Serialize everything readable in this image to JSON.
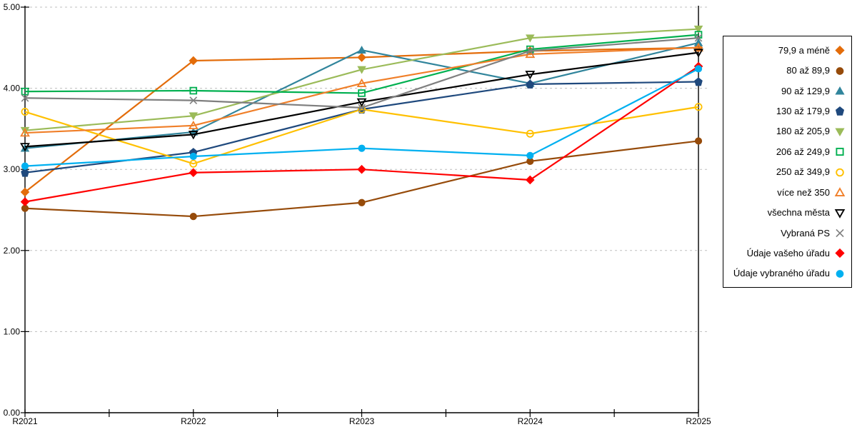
{
  "chart_data": {
    "type": "line",
    "title": "",
    "xlabel": "",
    "ylabel": "",
    "categories": [
      "R2021",
      "R2022",
      "R2023",
      "R2024",
      "R2025"
    ],
    "ylim": [
      0,
      5
    ],
    "ytick_step": 1,
    "ytick_labels": [
      "0.00",
      "1.00",
      "2.00",
      "3.00",
      "4.00",
      "5.00"
    ],
    "grid": "horizontal dashed gridlines at each 1.00",
    "legend_position": "right",
    "series": [
      {
        "name": "79,9 a méně",
        "color": "#E36C0A",
        "marker": "diamond",
        "marker_fill": "solid",
        "values": [
          2.72,
          4.34,
          4.38,
          4.46,
          4.5
        ]
      },
      {
        "name": "80 až 89,9",
        "color": "#964B0A",
        "marker": "circle",
        "marker_fill": "solid",
        "values": [
          2.52,
          2.42,
          2.59,
          3.1,
          3.35
        ]
      },
      {
        "name": "90 až 129,9",
        "color": "#31859C",
        "marker": "triangle-up",
        "marker_fill": "solid",
        "values": [
          3.26,
          3.46,
          4.47,
          4.06,
          4.56
        ]
      },
      {
        "name": "130 až 179,9",
        "color": "#1F497D",
        "marker": "pentagon",
        "marker_fill": "solid",
        "values": [
          2.96,
          3.21,
          3.74,
          4.05,
          4.08
        ]
      },
      {
        "name": "180 až 205,9",
        "color": "#9BBB59",
        "marker": "triangle-down",
        "marker_fill": "solid",
        "values": [
          3.48,
          3.66,
          4.23,
          4.62,
          4.73
        ]
      },
      {
        "name": "206 až 249,9",
        "color": "#00B050",
        "marker": "square",
        "marker_fill": "open",
        "values": [
          3.96,
          3.97,
          3.94,
          4.48,
          4.66
        ]
      },
      {
        "name": "250 až 349,9",
        "color": "#FFC000",
        "marker": "circle",
        "marker_fill": "open",
        "values": [
          3.71,
          3.07,
          3.74,
          3.44,
          3.77
        ]
      },
      {
        "name": "více než 350",
        "color": "#F07F29",
        "marker": "triangle-up",
        "marker_fill": "open",
        "values": [
          3.45,
          3.54,
          4.06,
          4.42,
          4.5
        ]
      },
      {
        "name": "všechna města",
        "color": "#000000",
        "marker": "triangle-down",
        "marker_fill": "open",
        "values": [
          3.28,
          3.43,
          3.83,
          4.17,
          4.44
        ]
      },
      {
        "name": "Vybraná PS",
        "color": "#7F7F7F",
        "marker": "x",
        "marker_fill": "open",
        "values": [
          3.88,
          3.85,
          3.76,
          4.46,
          4.62
        ]
      },
      {
        "name": "Údaje vašeho úřadu",
        "color": "#FF0000",
        "marker": "diamond",
        "marker_fill": "solid",
        "values": [
          2.6,
          2.96,
          3.0,
          2.87,
          4.27
        ]
      },
      {
        "name": "Údaje vybraného úřadu",
        "color": "#00B0F0",
        "marker": "circle",
        "marker_fill": "solid",
        "values": [
          3.04,
          3.16,
          3.26,
          3.17,
          4.24
        ]
      }
    ],
    "axis_color": "#000000",
    "gridline_color": "#BFBFBF",
    "background_color": "#FFFFFF"
  }
}
